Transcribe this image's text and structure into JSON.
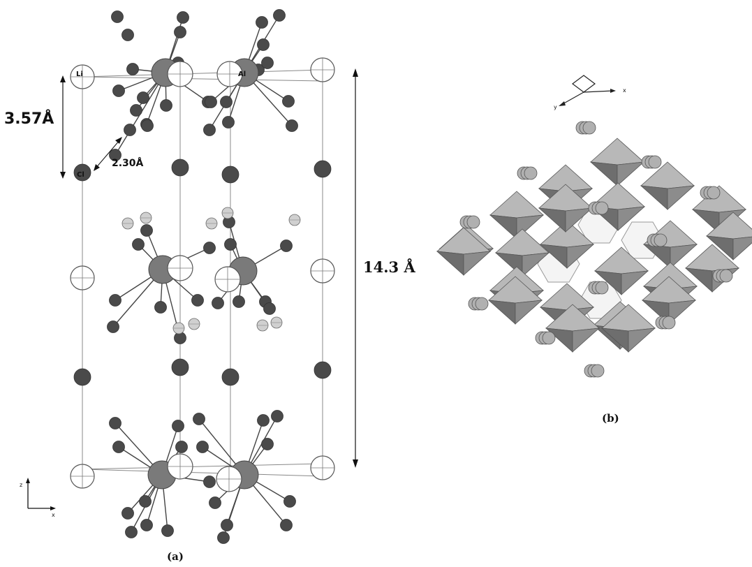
{
  "panel_a": {
    "caption": "(a)",
    "dimension_short": "3.57Å",
    "bond_length": "2.30Å",
    "dimension_tall": "14.3 Å",
    "atom_labels": {
      "li": "Li",
      "al": "Al",
      "cl": "Cl"
    },
    "axes": {
      "vertical": "z",
      "horizontal": "x"
    }
  },
  "panel_b": {
    "caption": "(b)",
    "axes": {
      "left": "y",
      "right": "x"
    }
  },
  "colors": {
    "dark_atom": "#4a4a4a",
    "medium_atom": "#7a7a7a",
    "light_atom": "#d0d0d0",
    "open_atom": "#ffffff",
    "polyhedron_light": "#b8b8b8",
    "polyhedron_dark": "#6e6e6e",
    "line": "#444444"
  }
}
